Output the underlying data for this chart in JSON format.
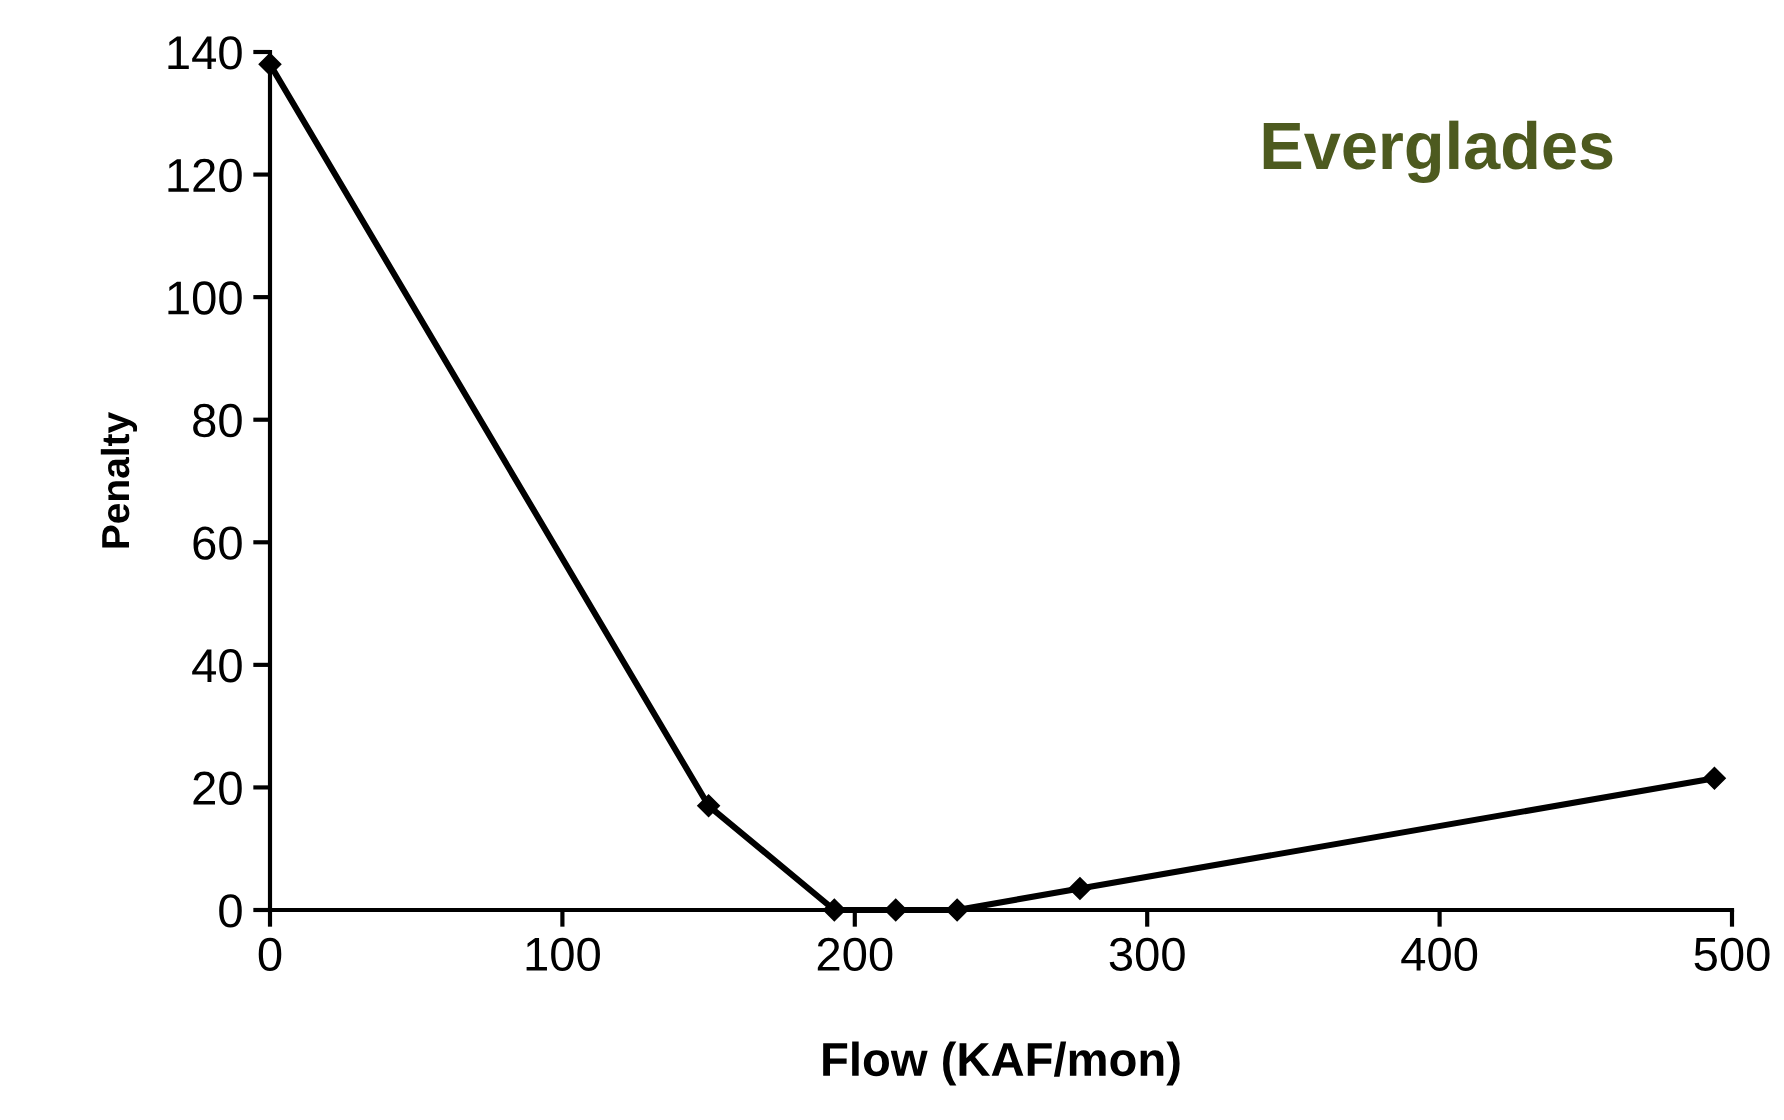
{
  "chart_data": {
    "type": "line",
    "title": "Everglades",
    "xlabel": "Flow (KAF/mon)",
    "ylabel": "Penalty",
    "x": [
      0,
      150,
      193,
      214,
      235,
      277,
      494
    ],
    "series": [
      {
        "color": "#000000",
        "values": [
          138,
          17,
          0,
          0,
          0,
          3.5,
          21.5
        ]
      }
    ],
    "xlim": [
      0,
      500
    ],
    "xticks": [
      0,
      100,
      200,
      300,
      400,
      500
    ],
    "ylim": [
      0,
      140
    ],
    "yticks": [
      0,
      20,
      40,
      60,
      80,
      100,
      120,
      140
    ],
    "marker": "diamond",
    "line_style": "solid"
  }
}
